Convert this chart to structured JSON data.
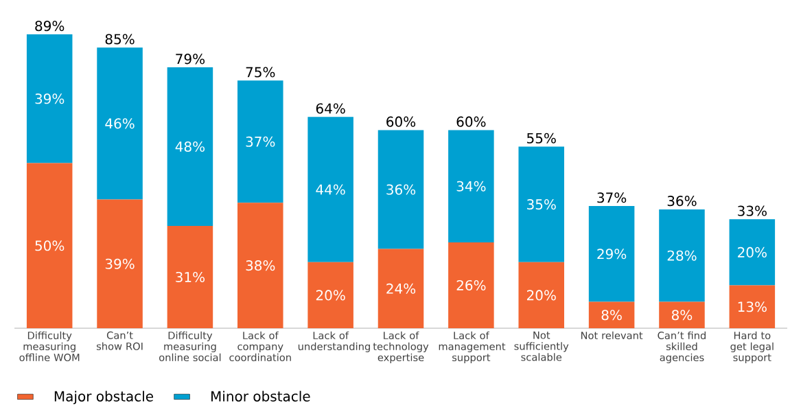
{
  "chart_data": {
    "type": "bar",
    "stacked": true,
    "categories": [
      "Difficulty measuring offline WOM",
      "Can’t show ROI",
      "Difficulty measuring online social",
      "Lack of company coordination",
      "Lack of understanding",
      "Lack of technology expertise",
      "Lack of management support",
      "Not sufficiently scalable",
      "Not relevant",
      "Can’t find skilled agencies",
      "Hard to get legal support"
    ],
    "series": [
      {
        "name": "Major obstacle",
        "color": "#f26531",
        "values": [
          50,
          39,
          31,
          38,
          20,
          24,
          26,
          20,
          8,
          8,
          13
        ],
        "value_labels": [
          "50%",
          "39%",
          "31%",
          "38%",
          "20%",
          "24%",
          "26%",
          "20%",
          "8%",
          "8%",
          "13%"
        ]
      },
      {
        "name": "Minor obstacle",
        "color": "#00a0d1",
        "values": [
          39,
          46,
          48,
          37,
          44,
          36,
          34,
          35,
          29,
          28,
          20
        ],
        "value_labels": [
          "39%",
          "46%",
          "48%",
          "37%",
          "44%",
          "36%",
          "34%",
          "35%",
          "29%",
          "28%",
          "20%"
        ]
      }
    ],
    "totals": [
      "89%",
      "85%",
      "79%",
      "75%",
      "64%",
      "60%",
      "60%",
      "55%",
      "37%",
      "36%",
      "33%"
    ],
    "legend": "bottom left"
  }
}
